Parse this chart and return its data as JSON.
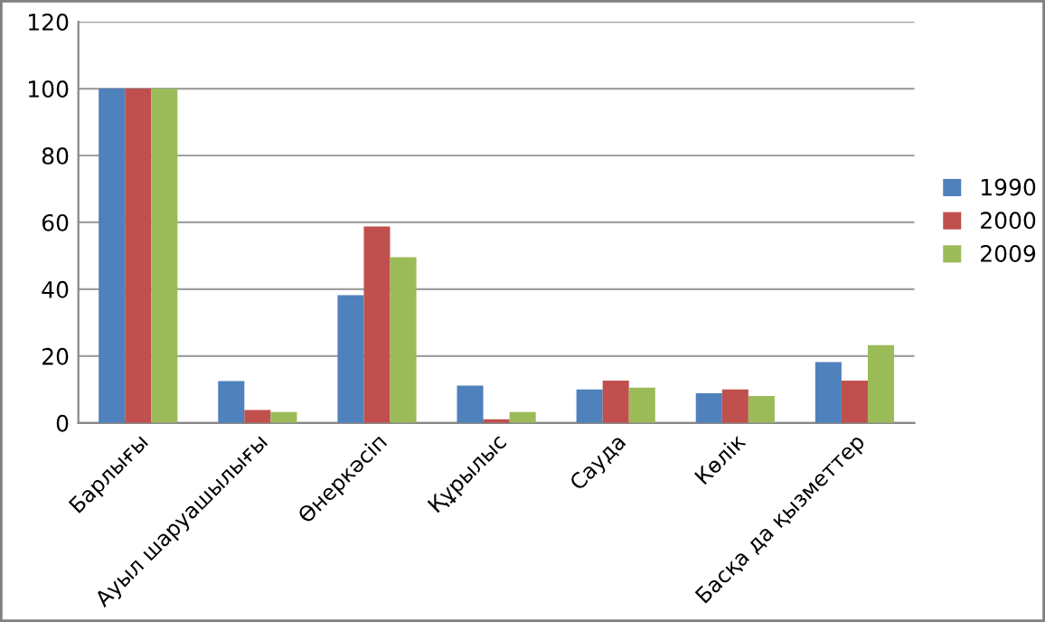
{
  "chart_data": {
    "type": "bar",
    "categories": [
      "Барлығы",
      "Ауыл шаруашылығы",
      "Өнеркәсіп",
      "Құрылыс",
      "Сауда",
      "Көлік",
      "Басқа да қызметтер"
    ],
    "series": [
      {
        "name": "1990",
        "color": "#4f81bd",
        "values": [
          100,
          12.5,
          38.2,
          11.2,
          10.0,
          8.9,
          18.2
        ]
      },
      {
        "name": "2000",
        "color": "#c0504d",
        "values": [
          100,
          3.9,
          58.8,
          1.1,
          12.7,
          10.0,
          12.7
        ]
      },
      {
        "name": "2009",
        "color": "#9bbb59",
        "values": [
          100,
          3.3,
          49.6,
          3.3,
          10.6,
          8.1,
          23.3
        ]
      }
    ],
    "ylim": [
      0,
      120
    ],
    "yticks": [
      0,
      20,
      40,
      60,
      80,
      100,
      120
    ],
    "grid": "y",
    "legend": "right"
  }
}
